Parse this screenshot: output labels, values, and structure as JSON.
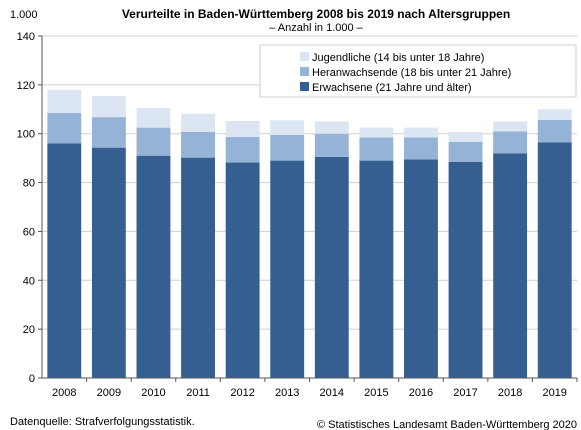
{
  "chart_data": {
    "type": "bar",
    "stacked": true,
    "title": "Verurteilte  in Baden-Württemberg 2008 bis 2019 nach Altersgruppen",
    "subtitle": "– Anzahl in 1.000 –",
    "yunit_label": "1.000",
    "ylim": [
      0,
      140
    ],
    "yticks": [
      0,
      20,
      40,
      60,
      80,
      100,
      120,
      140
    ],
    "grid": true,
    "legend_position": "top-right",
    "categories": [
      "2008",
      "2009",
      "2010",
      "2011",
      "2012",
      "2013",
      "2014",
      "2015",
      "2016",
      "2017",
      "2018",
      "2019"
    ],
    "series": [
      {
        "name": "Erwachsene (21 Jahre und älter)",
        "color": "#365f91",
        "values": [
          96,
          94.3,
          91,
          90.2,
          88.2,
          89,
          90.5,
          89,
          89.5,
          88.5,
          92,
          96.5
        ]
      },
      {
        "name": "Heranwachsende (18 bis unter 21 Jahre)",
        "color": "#95b3d7",
        "values": [
          12.5,
          12.5,
          11.5,
          10.5,
          10.5,
          10.5,
          9.5,
          9.5,
          9,
          8.2,
          9,
          9.2
        ]
      },
      {
        "name": "Jugendliche (14 bis unter 18 Jahre)",
        "color": "#dce6f2",
        "values": [
          9.5,
          8.7,
          8,
          7.5,
          6.5,
          6,
          5,
          4,
          4,
          4,
          4,
          4.3
        ]
      }
    ],
    "legend_order": [
      2,
      1,
      0
    ]
  },
  "footer": {
    "source": "Datenquelle: Strafverfolgungsstatistik.",
    "copyright": "© Statistisches Landesamt Baden-Württemberg 2020"
  }
}
